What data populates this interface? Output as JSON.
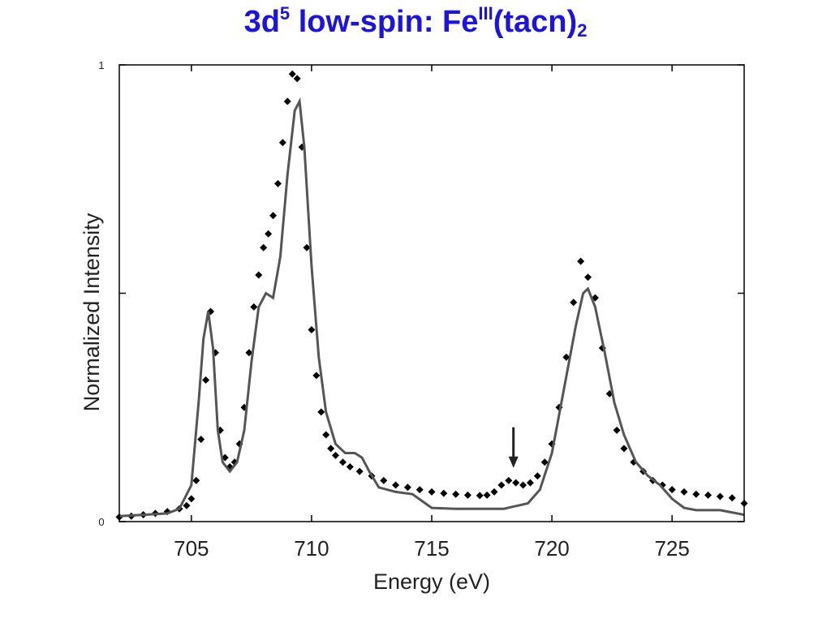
{
  "title": {
    "prefix": "3d",
    "sup1": "5",
    "middle": " low-spin: Fe",
    "sup2": "III",
    "suffix": "(tacn)",
    "sub": "2",
    "color": "#1a12e6"
  },
  "chart_data": {
    "type": "scatter",
    "title": "3d5 low-spin: FeIII(tacn)2",
    "xlabel": "Energy (eV)",
    "ylabel": "Normalized Intensity",
    "xlim": [
      702,
      728
    ],
    "ylim": [
      0,
      1
    ],
    "xticks": [
      705,
      710,
      715,
      720,
      725
    ],
    "yticks": [
      0,
      0.5,
      1
    ],
    "ytick_labels": [
      "0",
      "",
      "1"
    ],
    "grid": false,
    "legend": "none",
    "annotation": {
      "type": "arrow",
      "x": 718.4,
      "y": 0.1,
      "direction": "down"
    },
    "series": [
      {
        "style": "markers",
        "color": "#000000",
        "x": [
          702,
          702.5,
          703,
          703.5,
          704,
          704.5,
          704.8,
          705,
          705.2,
          705.4,
          705.6,
          705.8,
          706,
          706.2,
          706.4,
          706.6,
          706.8,
          707,
          707.2,
          707.4,
          707.6,
          707.8,
          708,
          708.2,
          708.4,
          708.6,
          708.8,
          709,
          709.2,
          709.4,
          709.6,
          709.8,
          710,
          710.2,
          710.4,
          710.6,
          710.8,
          711,
          711.3,
          711.6,
          712,
          712.5,
          713,
          713.5,
          714,
          714.5,
          715,
          715.5,
          716,
          716.5,
          717,
          717.3,
          717.6,
          717.9,
          718.2,
          718.5,
          718.8,
          719.1,
          719.4,
          719.7,
          720,
          720.3,
          720.6,
          720.9,
          721.2,
          721.5,
          721.8,
          722.1,
          722.4,
          722.7,
          723,
          723.4,
          723.8,
          724.2,
          724.6,
          725,
          725.5,
          726,
          726.5,
          727,
          727.5,
          728
        ],
        "y": [
          0.01,
          0.012,
          0.015,
          0.018,
          0.022,
          0.028,
          0.035,
          0.05,
          0.09,
          0.18,
          0.31,
          0.46,
          0.37,
          0.2,
          0.14,
          0.12,
          0.13,
          0.17,
          0.25,
          0.37,
          0.47,
          0.54,
          0.6,
          0.63,
          0.67,
          0.74,
          0.83,
          0.92,
          0.98,
          0.97,
          0.82,
          0.6,
          0.42,
          0.32,
          0.24,
          0.19,
          0.16,
          0.145,
          0.13,
          0.12,
          0.11,
          0.1,
          0.09,
          0.08,
          0.075,
          0.07,
          0.065,
          0.062,
          0.06,
          0.058,
          0.057,
          0.058,
          0.065,
          0.08,
          0.09,
          0.085,
          0.08,
          0.085,
          0.1,
          0.13,
          0.17,
          0.25,
          0.36,
          0.48,
          0.57,
          0.535,
          0.49,
          0.38,
          0.28,
          0.2,
          0.16,
          0.13,
          0.11,
          0.09,
          0.08,
          0.07,
          0.065,
          0.06,
          0.058,
          0.055,
          0.052,
          0.04
        ]
      },
      {
        "style": "line",
        "color": "#555555",
        "x": [
          702,
          703,
          704,
          704.5,
          705,
          705.3,
          705.5,
          705.7,
          705.9,
          706.1,
          706.3,
          706.6,
          706.9,
          707.2,
          707.5,
          707.8,
          708.1,
          708.4,
          708.7,
          709,
          709.3,
          709.5,
          709.7,
          710,
          710.3,
          710.6,
          711,
          711.4,
          711.8,
          712.1,
          712.4,
          712.8,
          713.5,
          714.2,
          715,
          716,
          717,
          718,
          719,
          719.5,
          720,
          720.5,
          721,
          721.3,
          721.5,
          721.8,
          722.2,
          722.6,
          723,
          723.5,
          724,
          724.5,
          725,
          725.5,
          726,
          727,
          728
        ],
        "y": [
          0.012,
          0.015,
          0.018,
          0.028,
          0.08,
          0.26,
          0.4,
          0.46,
          0.38,
          0.2,
          0.13,
          0.11,
          0.13,
          0.2,
          0.35,
          0.47,
          0.5,
          0.49,
          0.58,
          0.76,
          0.9,
          0.92,
          0.82,
          0.56,
          0.36,
          0.24,
          0.17,
          0.15,
          0.15,
          0.14,
          0.11,
          0.075,
          0.065,
          0.06,
          0.03,
          0.028,
          0.028,
          0.028,
          0.04,
          0.07,
          0.15,
          0.29,
          0.43,
          0.5,
          0.51,
          0.47,
          0.37,
          0.26,
          0.19,
          0.13,
          0.1,
          0.08,
          0.05,
          0.03,
          0.025,
          0.025,
          0.015
        ]
      }
    ]
  }
}
